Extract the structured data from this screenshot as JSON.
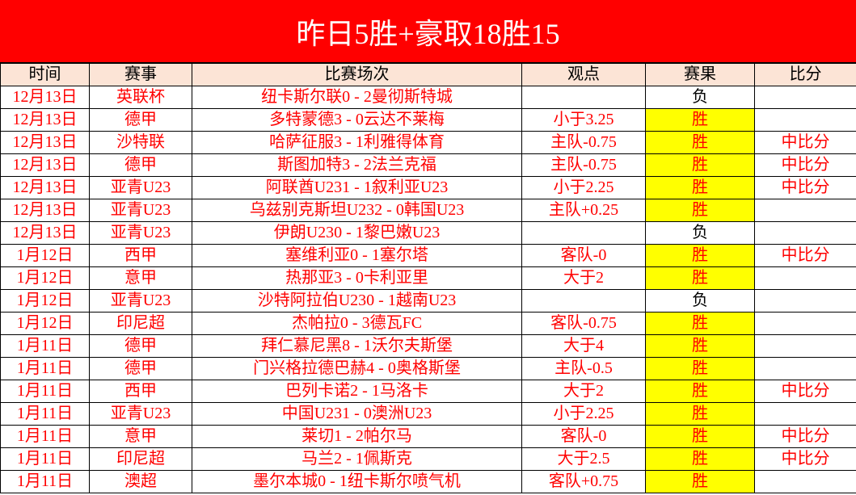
{
  "header": {
    "title": "昨日5胜+豪取18胜15"
  },
  "table": {
    "columns": [
      "时间",
      "赛事",
      "比赛场次",
      "观点",
      "赛果",
      "比分"
    ],
    "rows": [
      [
        "12月13日",
        "英联杯",
        "纽卡斯尔联0 - 2曼彻斯特城",
        null,
        "负",
        null
      ],
      [
        "12月13日",
        "德甲",
        "多特蒙德3 - 0云达不莱梅",
        "小于3.25",
        "胜",
        null
      ],
      [
        "12月13日",
        "沙特联",
        "哈萨征服3 - 1利雅得体育",
        "主队-0.75",
        "胜",
        "中比分"
      ],
      [
        "12月13日",
        "德甲",
        "斯图加特3 - 2法兰克福",
        "主队-0.75",
        "胜",
        "中比分"
      ],
      [
        "12月13日",
        "亚青U23",
        "阿联酋U231 - 1叙利亚U23",
        "小于2.25",
        "胜",
        "中比分"
      ],
      [
        "12月13日",
        "亚青U23",
        "乌兹别克斯坦U232 - 0韩国U23",
        "主队+0.25",
        "胜",
        null
      ],
      [
        "12月13日",
        "亚青U23",
        "伊朗U230 - 1黎巴嫩U23",
        null,
        "负",
        null
      ],
      [
        "1月12日",
        "西甲",
        "塞维利亚0 - 1塞尔塔",
        "客队-0",
        "胜",
        "中比分"
      ],
      [
        "1月12日",
        "意甲",
        "热那亚3 - 0卡利亚里",
        "大于2",
        "胜",
        null
      ],
      [
        "1月12日",
        "亚青U23",
        "沙特阿拉伯U230 - 1越南U23",
        null,
        "负",
        null
      ],
      [
        "1月12日",
        "印尼超",
        "杰帕拉0 - 3德瓦FC",
        "客队-0.75",
        "胜",
        null
      ],
      [
        "1月11日",
        "德甲",
        "拜仁慕尼黑8 - 1沃尔夫斯堡",
        "大于4",
        "胜",
        null
      ],
      [
        "1月11日",
        "德甲",
        "门兴格拉德巴赫4 - 0奥格斯堡",
        "主队-0.5",
        "胜",
        null
      ],
      [
        "1月11日",
        "西甲",
        "巴列卡诺2 - 1马洛卡",
        "大于2",
        "胜",
        "中比分"
      ],
      [
        "1月11日",
        "亚青U23",
        "中国U231 - 0澳洲U23",
        "小于2.25",
        "胜",
        null
      ],
      [
        "1月11日",
        "意甲",
        "莱切1 - 2帕尔马",
        "客队-0",
        "胜",
        "中比分"
      ],
      [
        "1月11日",
        "印尼超",
        "马兰2 - 1佩斯克",
        "大于2.5",
        "胜",
        "中比分"
      ],
      [
        "1月11日",
        "澳超",
        "墨尔本城0 - 1纽卡斯尔喷气机",
        "客队+0.75",
        "胜",
        null
      ]
    ]
  }
}
